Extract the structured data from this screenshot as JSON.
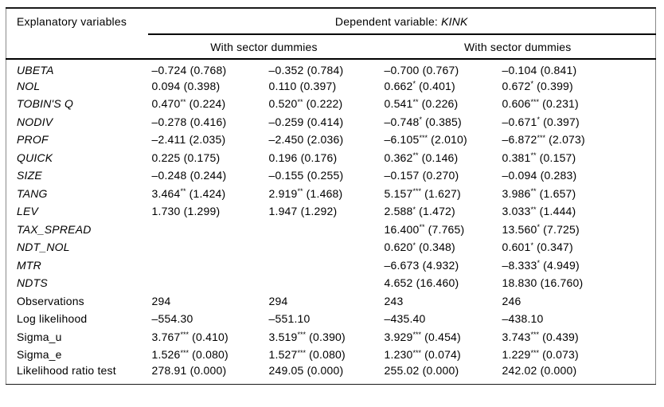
{
  "table": {
    "header": {
      "explanatory": "Explanatory variables",
      "dependent_prefix": "Dependent variable: ",
      "dependent_variable": "KINK",
      "group_left": "With sector dummies",
      "group_right": "With sector dummies"
    },
    "rows": [
      {
        "label": "UBETA",
        "italic": true,
        "values": [
          "–0.724 (0.768)",
          "–0.352 (0.784)",
          "–0.700 (0.767)",
          "–0.104 (0.841)"
        ]
      },
      {
        "label": "NOL",
        "italic": true,
        "values": [
          "0.094 (0.398)",
          "0.110 (0.397)",
          "0.662* (0.401)",
          "0.672* (0.399)"
        ]
      },
      {
        "label": "TOBIN'S Q",
        "italic": true,
        "values": [
          "0.470** (0.224)",
          "0.520** (0.222)",
          "0.541** (0.226)",
          "0.606*** (0.231)"
        ]
      },
      {
        "label": "NODIV",
        "italic": true,
        "values": [
          "–0.278 (0.416)",
          "–0.259 (0.414)",
          "–0.748* (0.385)",
          "–0.671* (0.397)"
        ]
      },
      {
        "label": "PROF",
        "italic": true,
        "values": [
          "–2.411 (2.035)",
          "–2.450 (2.036)",
          "–6.105*** (2.010)",
          "–6.872*** (2.073)"
        ]
      },
      {
        "label": "QUICK",
        "italic": true,
        "values": [
          "0.225 (0.175)",
          "0.196 (0.176)",
          "0.362** (0.146)",
          "0.381** (0.157)"
        ]
      },
      {
        "label": "SIZE",
        "italic": true,
        "values": [
          "–0.248 (0.244)",
          "–0.155 (0.255)",
          "–0.157 (0.270)",
          "–0.094 (0.283)"
        ]
      },
      {
        "label": "TANG",
        "italic": true,
        "values": [
          "3.464** (1.424)",
          "2.919** (1.468)",
          "5.157*** (1.627)",
          "3.986** (1.657)"
        ]
      },
      {
        "label": "LEV",
        "italic": true,
        "values": [
          "1.730 (1.299)",
          "1.947 (1.292)",
          "2.588* (1.472)",
          "3.033** (1.444)"
        ]
      },
      {
        "label": "TAX_SPREAD",
        "italic": true,
        "values": [
          "",
          "",
          "16.400** (7.765)",
          "13.560* (7.725)"
        ]
      },
      {
        "label": "NDT_NOL",
        "italic": true,
        "values": [
          "",
          "",
          "0.620* (0.348)",
          "0.601* (0.347)"
        ]
      },
      {
        "label": "MTR",
        "italic": true,
        "values": [
          "",
          "",
          "–6.673 (4.932)",
          "–8.333* (4.949)"
        ]
      },
      {
        "label": "NDTS",
        "italic": true,
        "values": [
          "",
          "",
          "4.652 (16.460)",
          "18.830 (16.760)"
        ]
      },
      {
        "label": "Observations",
        "italic": false,
        "values": [
          "294",
          "294",
          "243",
          "246"
        ]
      },
      {
        "label": "Log likelihood",
        "italic": false,
        "values": [
          "–554.30",
          "–551.10",
          "–435.40",
          "–438.10"
        ]
      },
      {
        "label": "Sigma_u",
        "italic": false,
        "values": [
          "3.767*** (0.410)",
          "3.519*** (0.390)",
          "3.929*** (0.454)",
          "3.743*** (0.439)"
        ]
      },
      {
        "label": "Sigma_e",
        "italic": false,
        "values": [
          "1.526*** (0.080)",
          "1.527*** (0.080)",
          "1.230*** (0.074)",
          "1.229*** (0.073)"
        ]
      },
      {
        "label": "Likelihood ratio test",
        "italic": false,
        "values": [
          "278.91 (0.000)",
          "249.05 (0.000)",
          "255.02 (0.000)",
          "242.02 (0.000)"
        ]
      }
    ]
  }
}
